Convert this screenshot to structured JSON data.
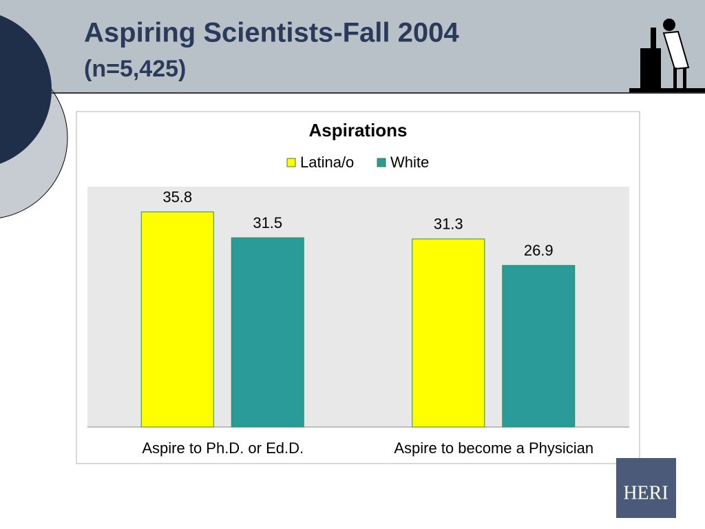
{
  "header": {
    "title": "Aspiring Scientists-Fall 2004",
    "subtitle": "(n=5,425)"
  },
  "chart_data": {
    "type": "bar",
    "title": "Aspirations",
    "categories": [
      "Aspire to Ph.D. or Ed.D.",
      "Aspire to become a Physician"
    ],
    "series": [
      {
        "name": "Latina/o",
        "color": "#ffff00",
        "values": [
          35.8,
          31.3
        ]
      },
      {
        "name": "White",
        "color": "#2a9b98",
        "values": [
          31.5,
          26.9
        ]
      }
    ],
    "ylim": [
      0,
      40
    ]
  },
  "logo": {
    "text": "HERI"
  }
}
